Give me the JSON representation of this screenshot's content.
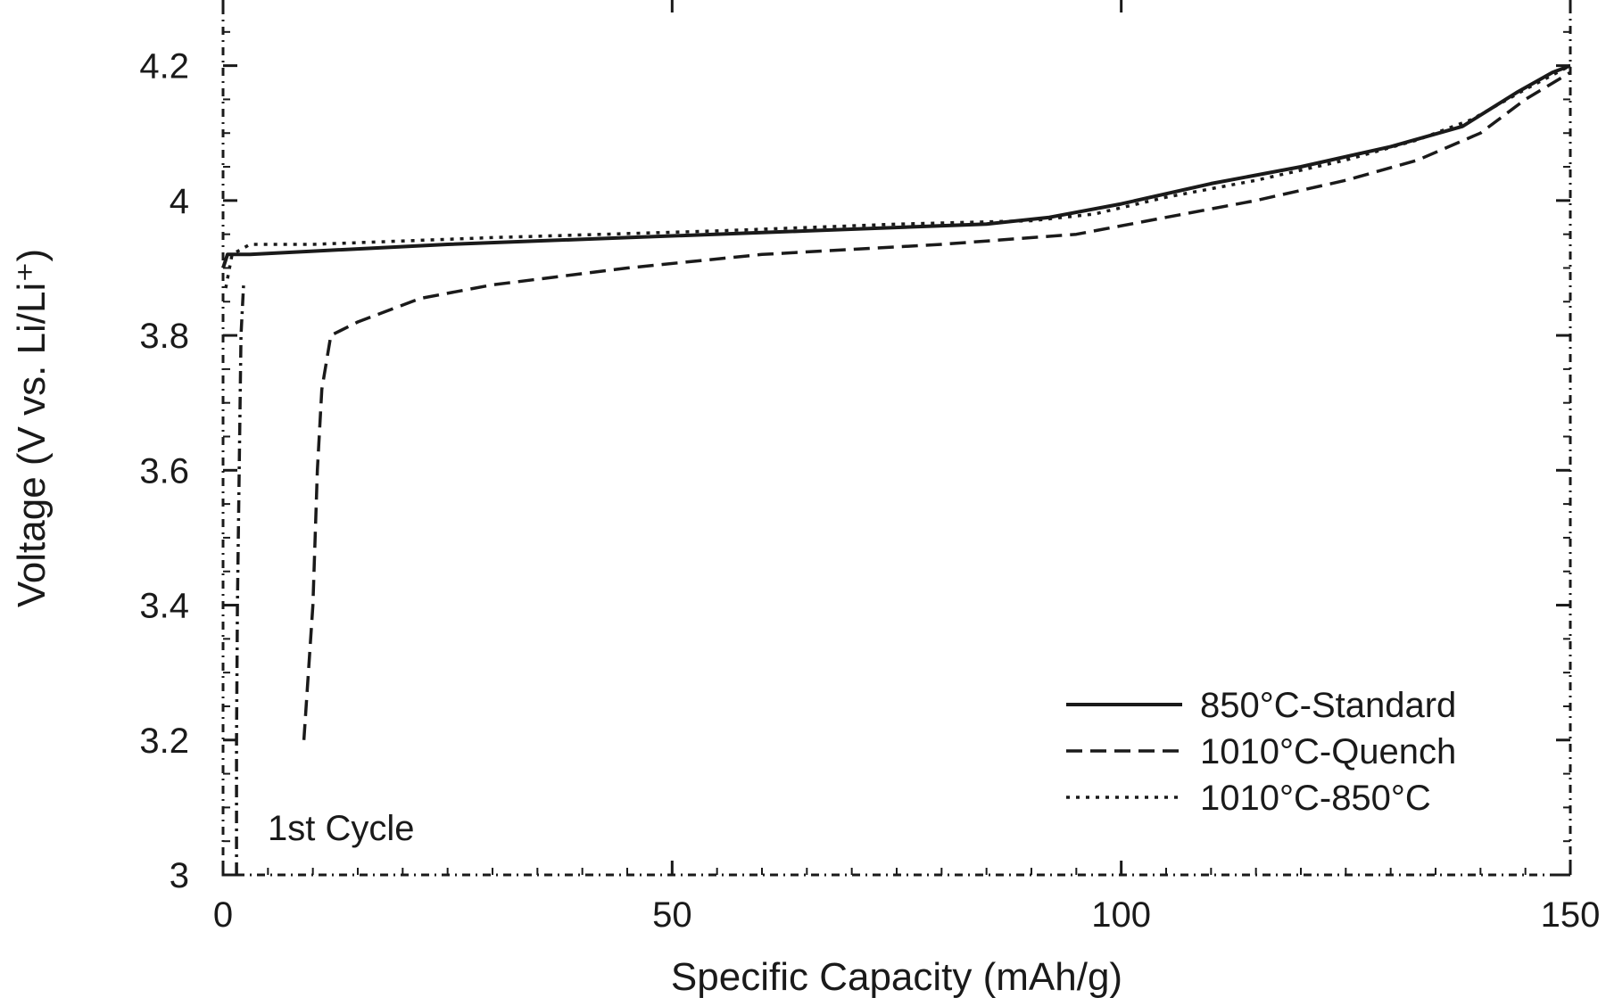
{
  "chart_data": {
    "type": "line",
    "xlabel": "Specific Capacity (mAh/g)",
    "ylabel": "Voltage (V vs. Li/Li⁺)",
    "xlim": [
      0,
      150
    ],
    "ylim": [
      3,
      4.3
    ],
    "xticks": [
      0,
      50,
      100,
      150
    ],
    "yticks": [
      3,
      3.2,
      3.4,
      3.6,
      3.8,
      4,
      4.2
    ],
    "grid": false,
    "legend_position": "bottom-right",
    "annotation": "1st Cycle",
    "series": [
      {
        "name": "850°C-Standard",
        "style": "solid",
        "color": "#1a1a1a",
        "points": [
          [
            0,
            3.9
          ],
          [
            0.5,
            3.92
          ],
          [
            3,
            3.92
          ],
          [
            10,
            3.925
          ],
          [
            25,
            3.935
          ],
          [
            45,
            3.945
          ],
          [
            65,
            3.955
          ],
          [
            85,
            3.965
          ],
          [
            92,
            3.975
          ],
          [
            100,
            3.995
          ],
          [
            110,
            4.025
          ],
          [
            120,
            4.05
          ],
          [
            130,
            4.08
          ],
          [
            138,
            4.11
          ],
          [
            144,
            4.16
          ],
          [
            148,
            4.19
          ],
          [
            150,
            4.2
          ]
        ]
      },
      {
        "name": "1010°C-Quench",
        "style": "dashed",
        "color": "#1a1a1a",
        "points": [
          [
            9,
            3.2
          ],
          [
            10,
            3.4
          ],
          [
            10.5,
            3.6
          ],
          [
            11,
            3.72
          ],
          [
            12,
            3.8
          ],
          [
            15,
            3.82
          ],
          [
            22,
            3.855
          ],
          [
            30,
            3.875
          ],
          [
            45,
            3.9
          ],
          [
            60,
            3.92
          ],
          [
            80,
            3.935
          ],
          [
            95,
            3.95
          ],
          [
            105,
            3.975
          ],
          [
            115,
            4.0
          ],
          [
            125,
            4.03
          ],
          [
            133,
            4.06
          ],
          [
            140,
            4.1
          ],
          [
            145,
            4.15
          ],
          [
            150,
            4.19
          ]
        ]
      },
      {
        "name": "1010°C-850°C",
        "style": "dotted",
        "color": "#1a1a1a",
        "points": [
          [
            0.3,
            3.87
          ],
          [
            1,
            3.92
          ],
          [
            3,
            3.935
          ],
          [
            10,
            3.935
          ],
          [
            30,
            3.945
          ],
          [
            55,
            3.955
          ],
          [
            75,
            3.965
          ],
          [
            90,
            3.97
          ],
          [
            97,
            3.98
          ],
          [
            105,
            4.005
          ],
          [
            115,
            4.03
          ],
          [
            125,
            4.06
          ],
          [
            133,
            4.09
          ],
          [
            139,
            4.12
          ],
          [
            145,
            4.165
          ],
          [
            150,
            4.2
          ]
        ]
      },
      {
        "name": "",
        "style": "dash-dot",
        "color": "#1a1a1a",
        "points": [
          [
            1.5,
            3.0
          ],
          [
            1.5,
            3.2
          ],
          [
            1.6,
            3.4
          ],
          [
            1.8,
            3.6
          ],
          [
            2.0,
            3.8
          ],
          [
            2.3,
            3.88
          ]
        ]
      }
    ]
  }
}
